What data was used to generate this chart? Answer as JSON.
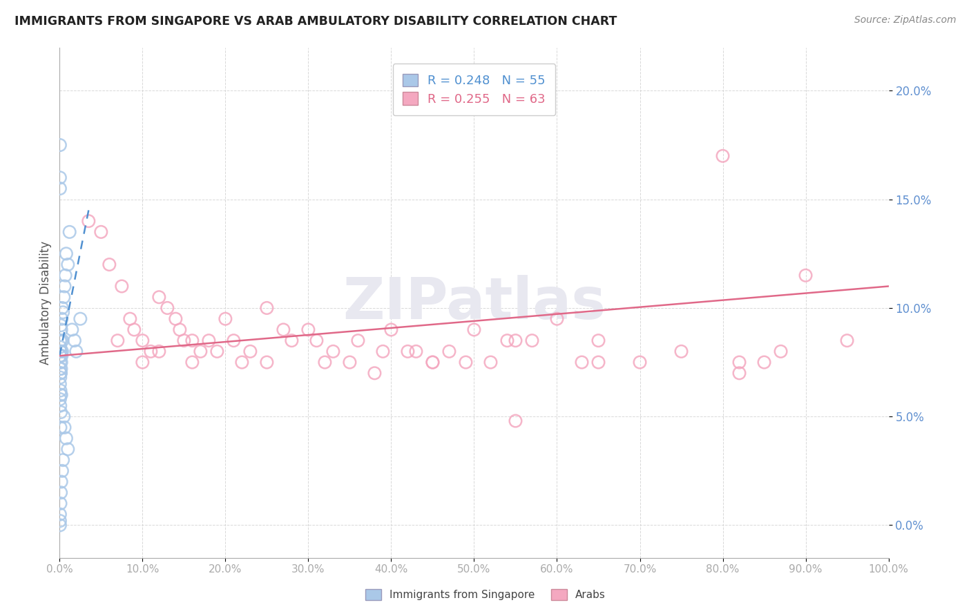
{
  "title": "IMMIGRANTS FROM SINGAPORE VS ARAB AMBULATORY DISABILITY CORRELATION CHART",
  "source": "Source: ZipAtlas.com",
  "ylabel": "Ambulatory Disability",
  "legend_blue_r": "R = 0.248",
  "legend_blue_n": "N = 55",
  "legend_pink_r": "R = 0.255",
  "legend_pink_n": "N = 63",
  "xlim": [
    0.0,
    100.0
  ],
  "ylim": [
    -1.5,
    22.0
  ],
  "xticks": [
    0.0,
    10.0,
    20.0,
    30.0,
    40.0,
    50.0,
    60.0,
    70.0,
    80.0,
    90.0,
    100.0
  ],
  "yticks": [
    0.0,
    5.0,
    10.0,
    15.0,
    20.0
  ],
  "blue_dot_color": "#aac8e8",
  "pink_dot_color": "#f4a8c0",
  "blue_line_color": "#5090d0",
  "pink_line_color": "#e06888",
  "watermark_color": "#e8e8f0",
  "tick_label_color": "#6090d0",
  "axis_color": "#aaaaaa",
  "grid_color": "#d8d8d8",
  "singapore_x": [
    0.05,
    0.05,
    0.05,
    0.05,
    0.05,
    0.08,
    0.08,
    0.08,
    0.08,
    0.1,
    0.1,
    0.1,
    0.1,
    0.12,
    0.12,
    0.15,
    0.15,
    0.15,
    0.15,
    0.18,
    0.18,
    0.2,
    0.2,
    0.2,
    0.25,
    0.25,
    0.3,
    0.3,
    0.35,
    0.4,
    0.5,
    0.6,
    0.7,
    0.8,
    1.0,
    1.2,
    1.5,
    1.8,
    2.0,
    2.5,
    1.0,
    0.8,
    0.6,
    0.5,
    0.4,
    0.3,
    0.2,
    0.15,
    0.1,
    0.05,
    0.05,
    0.05,
    0.05,
    0.05,
    0.05
  ],
  "singapore_y": [
    8.5,
    7.8,
    7.2,
    6.5,
    5.8,
    8.2,
    7.5,
    6.8,
    5.5,
    8.0,
    7.0,
    6.2,
    4.5,
    7.8,
    6.0,
    9.2,
    8.0,
    7.0,
    5.2,
    8.5,
    7.2,
    9.0,
    7.5,
    6.0,
    9.5,
    7.8,
    10.0,
    8.0,
    8.5,
    9.8,
    10.5,
    11.0,
    11.5,
    12.5,
    12.0,
    13.5,
    9.0,
    8.5,
    8.0,
    9.5,
    3.5,
    4.0,
    4.5,
    5.0,
    3.0,
    2.5,
    2.0,
    1.5,
    1.0,
    17.5,
    16.0,
    15.5,
    0.5,
    0.2,
    0.0
  ],
  "arab_x": [
    3.5,
    5.0,
    6.0,
    7.5,
    8.5,
    9.0,
    10.0,
    11.0,
    12.0,
    13.0,
    14.0,
    14.5,
    15.0,
    16.0,
    17.0,
    18.0,
    19.0,
    20.0,
    21.0,
    22.0,
    23.0,
    25.0,
    27.0,
    28.0,
    30.0,
    31.0,
    33.0,
    35.0,
    36.0,
    38.0,
    39.0,
    40.0,
    42.0,
    43.0,
    45.0,
    47.0,
    49.0,
    50.0,
    52.0,
    54.0,
    55.0,
    57.0,
    60.0,
    63.0,
    65.0,
    70.0,
    75.0,
    80.0,
    82.0,
    85.0,
    87.0,
    90.0,
    95.0,
    7.0,
    12.0,
    16.0,
    25.0,
    32.0,
    45.0,
    55.0,
    65.0,
    82.0,
    10.0
  ],
  "arab_y": [
    14.0,
    13.5,
    12.0,
    11.0,
    9.5,
    9.0,
    8.5,
    8.0,
    10.5,
    10.0,
    9.5,
    9.0,
    8.5,
    8.5,
    8.0,
    8.5,
    8.0,
    9.5,
    8.5,
    7.5,
    8.0,
    10.0,
    9.0,
    8.5,
    9.0,
    8.5,
    8.0,
    7.5,
    8.5,
    7.0,
    8.0,
    9.0,
    8.0,
    8.0,
    7.5,
    8.0,
    7.5,
    9.0,
    7.5,
    8.5,
    4.8,
    8.5,
    9.5,
    7.5,
    8.5,
    7.5,
    8.0,
    17.0,
    7.0,
    7.5,
    8.0,
    11.5,
    8.5,
    8.5,
    8.0,
    7.5,
    7.5,
    7.5,
    7.5,
    8.5,
    7.5,
    7.5,
    7.5
  ],
  "blue_trend_x0": 0.0,
  "blue_trend_y0": 7.8,
  "blue_trend_x1": 3.5,
  "blue_trend_y1": 14.5,
  "pink_trend_x0": 0.0,
  "pink_trend_y0": 7.8,
  "pink_trend_x1": 100.0,
  "pink_trend_y1": 11.0
}
